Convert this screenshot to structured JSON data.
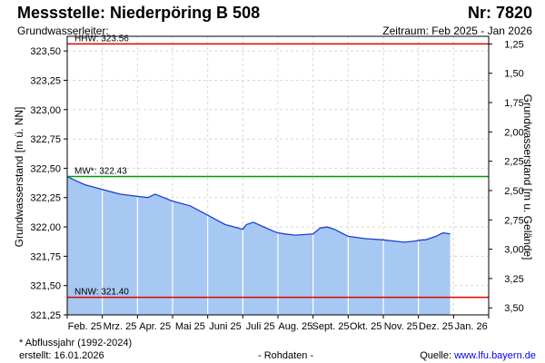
{
  "header": {
    "title": "Messstelle: Niederpöring B 508",
    "number": "Nr: 7820",
    "aquifer": "Grundwasserleiter:",
    "period": "Zeitraum: Feb 2025 - Jan 2026"
  },
  "footer": {
    "note": "* Abflussjahr (1992-2024)",
    "created": "erstellt:  16.01.2026",
    "raw": "- Rohdaten -",
    "source_label": "Quelle: ",
    "source_link": "www.lfu.bayern.de"
  },
  "colors": {
    "fill": "#a6c8f2",
    "line": "#1f3fd0",
    "hhw": "#e00000",
    "mw": "#009a00",
    "nnw": "#e00000"
  },
  "chart_data": {
    "type": "area",
    "title": "",
    "ylabel": "Grundwasserstand [m ü. NN]",
    "ylabel_right": "Grundwasserstand [m u. Gelände]",
    "ylim": [
      321.25,
      323.625
    ],
    "y_ticks": [
      "323,50",
      "323,25",
      "323,00",
      "322,75",
      "322,50",
      "322,25",
      "322,00",
      "321,75",
      "321,50",
      "321,25"
    ],
    "y_tick_values": [
      323.5,
      323.25,
      323.0,
      322.75,
      322.5,
      322.25,
      322.0,
      321.75,
      321.5,
      321.25
    ],
    "y_right_ticks": [
      "1,25",
      "1,50",
      "1,75",
      "2,00",
      "2,25",
      "2,50",
      "2,75",
      "3,00",
      "3,25",
      "3,50"
    ],
    "y_right_tick_values": [
      1.25,
      1.5,
      1.75,
      2.0,
      2.25,
      2.5,
      2.75,
      3.0,
      3.25,
      3.5
    ],
    "surface_elevation": 324.81,
    "x_range": [
      0,
      12
    ],
    "x_ticks": [
      "Feb. 25",
      "Mrz. 25",
      "Apr. 25",
      "Mai 25",
      "Juni 25",
      "Juli 25",
      "Aug. 25",
      "Sept. 25",
      "Okt. 25",
      "Nov. 25",
      "Dez. 25",
      "Jan. 26"
    ],
    "reference_lines": [
      {
        "label": "HHW: 323.56",
        "value": 323.56,
        "key": "hhw"
      },
      {
        "label": "MW*: 322.43",
        "value": 322.43,
        "key": "mw"
      },
      {
        "label": "NNW: 321.40",
        "value": 321.4,
        "key": "nnw"
      }
    ],
    "series": [
      {
        "x": [
          0.0,
          0.2,
          0.5,
          1.0,
          1.5,
          2.0,
          2.3,
          2.5,
          3.0,
          3.5,
          4.0,
          4.5,
          5.0,
          5.1,
          5.3,
          5.6,
          5.9,
          6.0,
          6.2,
          6.5,
          7.0,
          7.2,
          7.4,
          7.6,
          8.0,
          8.5,
          9.0,
          9.3,
          9.6,
          9.9,
          10.1,
          10.2,
          10.3,
          10.5,
          10.7,
          10.9
        ],
        "y": [
          322.43,
          322.4,
          322.36,
          322.32,
          322.28,
          322.26,
          322.25,
          322.28,
          322.22,
          322.18,
          322.1,
          322.02,
          321.98,
          322.02,
          322.04,
          322.0,
          321.96,
          321.95,
          321.94,
          321.93,
          321.94,
          321.99,
          322.0,
          321.98,
          321.92,
          321.9,
          321.89,
          321.88,
          321.87,
          321.88,
          321.89,
          321.89,
          321.9,
          321.92,
          321.95,
          321.94
        ]
      }
    ]
  }
}
